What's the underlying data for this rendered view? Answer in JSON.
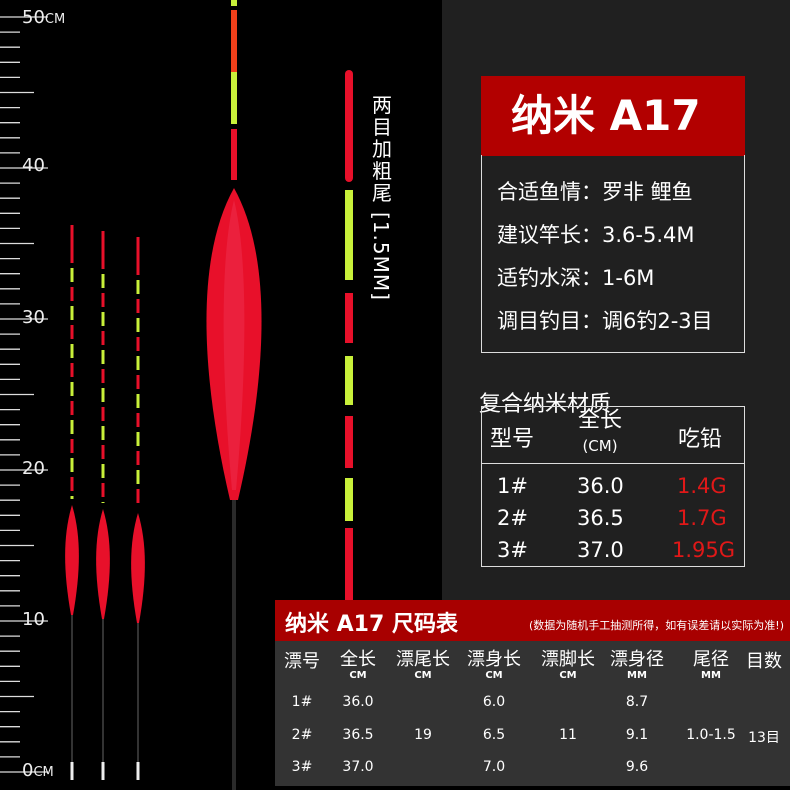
{
  "ruler": {
    "labels": [
      "50",
      "40",
      "30",
      "20",
      "10",
      "0"
    ],
    "unit": "CM"
  },
  "tail_label": {
    "text": "两目加粗尾",
    "spec": "[1.5MM]"
  },
  "product": {
    "title": "纳米 A17",
    "info": [
      {
        "label": "合适鱼情：",
        "value": "罗非 鲤鱼"
      },
      {
        "label": "建议竿长：",
        "value": "3.6-5.4M"
      },
      {
        "label": "适钓水深：",
        "value": "1-6M"
      },
      {
        "label": "调目钓目：",
        "value": "调6钓2-3目"
      }
    ]
  },
  "material": "复合纳米材质",
  "weight_table": {
    "headers": {
      "model": "型号",
      "length": "全长",
      "length_unit": "(CM)",
      "lead": "吃铅"
    },
    "rows": [
      {
        "model": "1#",
        "length": "36.0",
        "lead": "1.4G"
      },
      {
        "model": "2#",
        "length": "36.5",
        "lead": "1.7G"
      },
      {
        "model": "3#",
        "length": "37.0",
        "lead": "1.95G"
      }
    ]
  },
  "size_table": {
    "title": "纳米 A17 尺码表",
    "note": "(数据为随机手工抽测所得，如有误差请以实际为准!)",
    "headers": [
      {
        "label": "漂号",
        "unit": ""
      },
      {
        "label": "全长",
        "unit": "CM"
      },
      {
        "label": "漂尾长",
        "unit": "CM"
      },
      {
        "label": "漂身长",
        "unit": "CM"
      },
      {
        "label": "漂脚长",
        "unit": "CM"
      },
      {
        "label": "漂身径",
        "unit": "MM"
      },
      {
        "label": "尾径",
        "unit": "MM"
      },
      {
        "label": "目数",
        "unit": ""
      }
    ],
    "rows": [
      [
        "1#",
        "36.0",
        "",
        "6.0",
        "",
        "8.7",
        "",
        ""
      ],
      [
        "2#",
        "36.5",
        "19",
        "6.5",
        "11",
        "9.1",
        "1.0-1.5",
        "13目"
      ],
      [
        "3#",
        "37.0",
        "",
        "7.0",
        "",
        "9.6",
        "",
        ""
      ]
    ]
  },
  "colors": {
    "red": "#b20000",
    "lead_red": "#e01818",
    "float_red": "#e8102a",
    "float_green": "#c8f03a",
    "panel": "#202020"
  }
}
